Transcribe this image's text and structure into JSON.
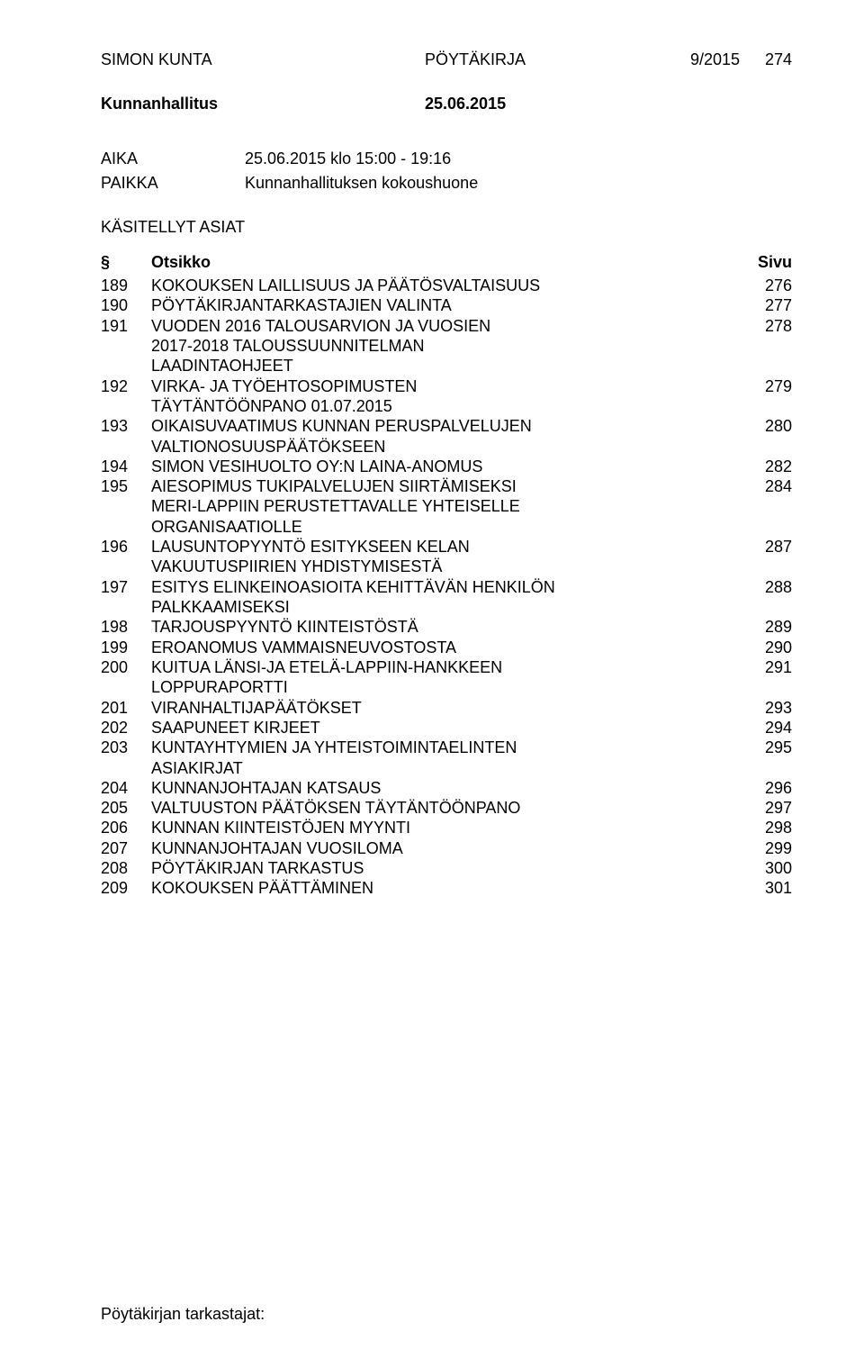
{
  "header": {
    "org": "SIMON KUNTA",
    "doc_type": "PÖYTÄKIRJA",
    "doc_no": "9/2015",
    "page_no": "274"
  },
  "board": {
    "name": "Kunnanhallitus",
    "date": "25.06.2015"
  },
  "meta": {
    "aika_label": "AIKA",
    "aika_value": "25.06.2015 klo 15:00 - 19:16",
    "paikka_label": "PAIKKA",
    "paikka_value": "Kunnanhallituksen kokoushuone",
    "kasitellyt": "KÄSITELLYT ASIAT"
  },
  "toc_header": {
    "sym": "§",
    "title": "Otsikko",
    "page": "Sivu"
  },
  "toc": [
    {
      "n": "189",
      "t": "KOKOUKSEN LAILLISUUS JA PÄÄTÖSVALTAISUUS",
      "p": "276"
    },
    {
      "n": "190",
      "t": "PÖYTÄKIRJANTARKASTAJIEN VALINTA",
      "p": "277"
    },
    {
      "n": "191",
      "t": "VUODEN 2016 TALOUSARVION JA VUOSIEN\n2017-2018 TALOUSSUUNNITELMAN\nLAADINTAOHJEET",
      "p": "278"
    },
    {
      "n": "192",
      "t": "VIRKA- JA TYÖEHTOSOPIMUSTEN\nTÄYTÄNTÖÖNPANO 01.07.2015",
      "p": "279"
    },
    {
      "n": "193",
      "t": "OIKAISUVAATIMUS KUNNAN PERUSPALVELUJEN\nVALTIONOSUUSPÄÄTÖKSEEN",
      "p": "280"
    },
    {
      "n": "194",
      "t": "SIMON VESIHUOLTO OY:N LAINA-ANOMUS",
      "p": "282"
    },
    {
      "n": "195",
      "t": "AIESOPIMUS TUKIPALVELUJEN SIIRTÄMISEKSI\nMERI-LAPPIIN PERUSTETTAVALLE YHTEISELLE\nORGANISAATIOLLE",
      "p": "284"
    },
    {
      "n": "196",
      "t": "LAUSUNTOPYYNTÖ ESITYKSEEN KELAN\nVAKUUTUSPIIRIEN YHDISTYMISESTÄ",
      "p": "287"
    },
    {
      "n": "197",
      "t": "ESITYS ELINKEINOASIOITA KEHITTÄVÄN HENKILÖN\nPALKKAAMISEKSI",
      "p": "288"
    },
    {
      "n": "198",
      "t": "TARJOUSPYYNTÖ KIINTEISTÖSTÄ",
      "p": "289"
    },
    {
      "n": "199",
      "t": "EROANOMUS VAMMAISNEUVOSTOSTA",
      "p": "290"
    },
    {
      "n": "200",
      "t": "KUITUA LÄNSI-JA ETELÄ-LAPPIIN-HANKKEEN\nLOPPURAPORTTI",
      "p": "291"
    },
    {
      "n": "201",
      "t": "VIRANHALTIJAPÄÄTÖKSET",
      "p": "293"
    },
    {
      "n": "202",
      "t": "SAAPUNEET KIRJEET",
      "p": "294"
    },
    {
      "n": "203",
      "t": "KUNTAYHTYMIEN JA YHTEISTOIMINTAELINTEN\nASIAKIRJAT",
      "p": "295"
    },
    {
      "n": "204",
      "t": "KUNNANJOHTAJAN KATSAUS",
      "p": "296"
    },
    {
      "n": "205",
      "t": "VALTUUSTON PÄÄTÖKSEN TÄYTÄNTÖÖNPANO",
      "p": "297"
    },
    {
      "n": "206",
      "t": "KUNNAN KIINTEISTÖJEN MYYNTI",
      "p": "298"
    },
    {
      "n": "207",
      "t": "KUNNANJOHTAJAN VUOSILOMA",
      "p": "299"
    },
    {
      "n": "208",
      "t": "PÖYTÄKIRJAN TARKASTUS",
      "p": "300"
    },
    {
      "n": "209",
      "t": "KOKOUKSEN PÄÄTTÄMINEN",
      "p": "301"
    }
  ],
  "footer": "Pöytäkirjan tarkastajat:"
}
